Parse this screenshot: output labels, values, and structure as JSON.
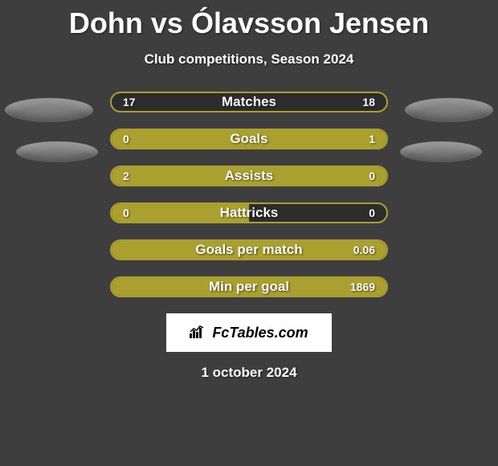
{
  "title": "Dohn vs Ólavsson Jensen",
  "subtitle": "Club competitions, Season 2024",
  "date": "1 october 2024",
  "logo_text": "FcTables.com",
  "colors": {
    "background": "#3e3e3e",
    "accent": "#aaa02f",
    "track": "#2d2d2d",
    "text": "#ffffff",
    "ellipse": "#7e7e7e",
    "logo_bg": "#ffffff",
    "logo_text": "#000000"
  },
  "bars": [
    {
      "label": "Matches",
      "left_value": "17",
      "right_value": "18",
      "left_pct": 0,
      "right_pct": 0
    },
    {
      "label": "Goals",
      "left_value": "0",
      "right_value": "1",
      "left_pct": 18,
      "right_pct": 82
    },
    {
      "label": "Assists",
      "left_value": "2",
      "right_value": "0",
      "left_pct": 76,
      "right_pct": 24
    },
    {
      "label": "Hattricks",
      "left_value": "0",
      "right_value": "0",
      "left_pct": 50,
      "right_pct": 0
    },
    {
      "label": "Goals per match",
      "left_value": "",
      "right_value": "0.06",
      "left_pct": 100,
      "right_pct": 0
    },
    {
      "label": "Min per goal",
      "left_value": "",
      "right_value": "1869",
      "left_pct": 100,
      "right_pct": 0
    }
  ]
}
